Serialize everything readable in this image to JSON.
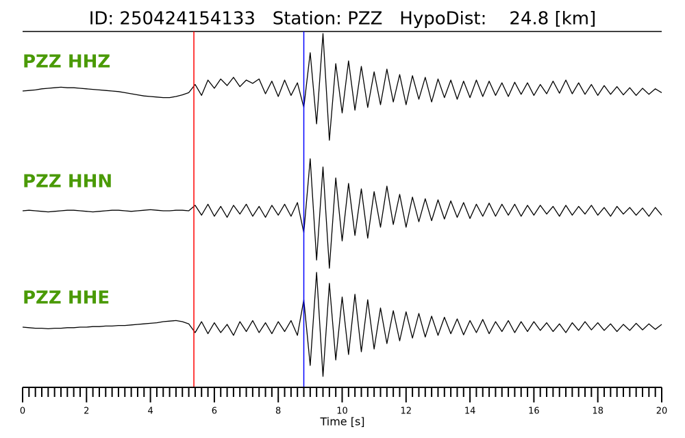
{
  "chart_data": {
    "type": "line",
    "title": "ID: 250424154133   Station: PZZ   HypoDist:    24.8 [km]",
    "xlabel": "Time [s]",
    "xlim": [
      0,
      20
    ],
    "xticks": [
      0,
      2,
      4,
      6,
      8,
      10,
      12,
      14,
      16,
      18,
      20
    ],
    "xminorticks": [
      0.2,
      0.4,
      0.6,
      0.8,
      1,
      1.2,
      1.4,
      1.6,
      1.8,
      2.2,
      2.4,
      2.6,
      2.8,
      3,
      3.2,
      3.4,
      3.6,
      3.8,
      4.2,
      4.4,
      4.6,
      4.8,
      5,
      5.2,
      5.4,
      5.6,
      5.8,
      6.2,
      6.4,
      6.6,
      6.8,
      7,
      7.2,
      7.4,
      7.6,
      7.8,
      8.2,
      8.4,
      8.6,
      8.8,
      9,
      9.2,
      9.4,
      9.6,
      9.8,
      10.2,
      10.4,
      10.6,
      10.8,
      11,
      11.2,
      11.4,
      11.6,
      11.8,
      12.2,
      12.4,
      12.6,
      12.8,
      13,
      13.2,
      13.4,
      13.6,
      13.8,
      14.2,
      14.4,
      14.6,
      14.8,
      15,
      15.2,
      15.4,
      15.6,
      15.8,
      16.2,
      16.4,
      16.6,
      16.8,
      17,
      17.2,
      17.4,
      17.6,
      17.8,
      18.2,
      18.4,
      18.6,
      18.8,
      19,
      19.2,
      19.4,
      19.6,
      19.8
    ],
    "ylim": [
      -1.1,
      1.1
    ],
    "label_color": "#4a9a06",
    "vlines": [
      {
        "x": 5.36,
        "color": "#ff0000"
      },
      {
        "x": 8.8,
        "color": "#0000ff"
      }
    ],
    "x": [
      0,
      0.2,
      0.4,
      0.6,
      0.8,
      1,
      1.2,
      1.4,
      1.6,
      1.8,
      2,
      2.2,
      2.4,
      2.6,
      2.8,
      3,
      3.2,
      3.4,
      3.6,
      3.8,
      4,
      4.2,
      4.4,
      4.6,
      4.8,
      5,
      5.2,
      5.4,
      5.6,
      5.8,
      6,
      6.2,
      6.4,
      6.6,
      6.8,
      7,
      7.2,
      7.4,
      7.6,
      7.8,
      8,
      8.2,
      8.4,
      8.6,
      8.8,
      9,
      9.2,
      9.4,
      9.6,
      9.8,
      10,
      10.2,
      10.4,
      10.6,
      10.8,
      11,
      11.2,
      11.4,
      11.6,
      11.8,
      12,
      12.2,
      12.4,
      12.6,
      12.8,
      13,
      13.2,
      13.4,
      13.6,
      13.8,
      14,
      14.2,
      14.4,
      14.6,
      14.8,
      15,
      15.2,
      15.4,
      15.6,
      15.8,
      16,
      16.2,
      16.4,
      16.6,
      16.8,
      17,
      17.2,
      17.4,
      17.6,
      17.8,
      18,
      18.2,
      18.4,
      18.6,
      18.8,
      19,
      19.2,
      19.4,
      19.6,
      19.8,
      20
    ],
    "series": [
      {
        "name": "PZZ HHZ",
        "color": "#000000",
        "values": [
          0,
          0.01,
          0.02,
          0.04,
          0.05,
          0.06,
          0.07,
          0.06,
          0.06,
          0.05,
          0.04,
          0.03,
          0.02,
          0.01,
          0,
          -0.01,
          -0.03,
          -0.05,
          -0.07,
          -0.09,
          -0.1,
          -0.11,
          -0.12,
          -0.12,
          -0.1,
          -0.07,
          -0.03,
          0.12,
          -0.08,
          0.2,
          0.05,
          0.22,
          0.1,
          0.25,
          0.08,
          0.2,
          0.14,
          0.22,
          -0.05,
          0.18,
          -0.1,
          0.2,
          -0.08,
          0.15,
          -0.3,
          0.7,
          -0.6,
          1.05,
          -0.9,
          0.5,
          -0.4,
          0.55,
          -0.35,
          0.45,
          -0.3,
          0.35,
          -0.25,
          0.4,
          -0.2,
          0.3,
          -0.25,
          0.28,
          -0.15,
          0.25,
          -0.2,
          0.22,
          -0.12,
          0.2,
          -0.15,
          0.18,
          -0.12,
          0.2,
          -0.1,
          0.18,
          -0.08,
          0.15,
          -0.1,
          0.16,
          -0.06,
          0.15,
          -0.08,
          0.12,
          -0.05,
          0.18,
          -0.04,
          0.2,
          -0.05,
          0.15,
          -0.06,
          0.12,
          -0.08,
          0.1,
          -0.06,
          0.08,
          -0.07,
          0.06,
          -0.08,
          0.05,
          -0.06,
          0.04,
          -0.03
        ]
      },
      {
        "name": "PZZ HHN",
        "color": "#000000",
        "values": [
          0,
          0.01,
          0,
          -0.01,
          -0.02,
          -0.01,
          0,
          0.01,
          0.01,
          0,
          -0.01,
          -0.02,
          -0.01,
          0,
          0.01,
          0.01,
          0,
          -0.01,
          0,
          0.01,
          0.02,
          0.01,
          0,
          0,
          0.01,
          0.01,
          0,
          0.1,
          -0.08,
          0.12,
          -0.1,
          0.08,
          -0.12,
          0.1,
          -0.06,
          0.12,
          -0.1,
          0.08,
          -0.12,
          0.1,
          -0.08,
          0.12,
          -0.1,
          0.15,
          -0.4,
          0.95,
          -0.9,
          0.8,
          -1.05,
          0.6,
          -0.55,
          0.5,
          -0.45,
          0.4,
          -0.5,
          0.35,
          -0.3,
          0.45,
          -0.25,
          0.3,
          -0.3,
          0.25,
          -0.2,
          0.22,
          -0.18,
          0.2,
          -0.15,
          0.18,
          -0.12,
          0.15,
          -0.14,
          0.12,
          -0.1,
          0.14,
          -0.1,
          0.12,
          -0.08,
          0.12,
          -0.1,
          0.1,
          -0.08,
          0.1,
          -0.06,
          0.08,
          -0.1,
          0.1,
          -0.08,
          0.08,
          -0.06,
          0.1,
          -0.08,
          0.06,
          -0.1,
          0.08,
          -0.06,
          0.06,
          -0.08,
          0.05,
          -0.1,
          0.06,
          -0.08
        ]
      },
      {
        "name": "PZZ HHE",
        "color": "#000000",
        "values": [
          0,
          -0.01,
          -0.02,
          -0.02,
          -0.03,
          -0.02,
          -0.02,
          -0.01,
          -0.01,
          0,
          0,
          0.01,
          0.01,
          0.02,
          0.02,
          0.03,
          0.03,
          0.04,
          0.05,
          0.06,
          0.07,
          0.08,
          0.1,
          0.11,
          0.12,
          0.1,
          0.06,
          -0.1,
          0.1,
          -0.12,
          0.08,
          -0.1,
          0.05,
          -0.15,
          0.1,
          -0.08,
          0.12,
          -0.1,
          0.08,
          -0.12,
          0.1,
          -0.08,
          0.12,
          -0.15,
          0.5,
          -0.7,
          1.0,
          -0.9,
          0.8,
          -0.6,
          0.55,
          -0.5,
          0.6,
          -0.45,
          0.5,
          -0.4,
          0.35,
          -0.3,
          0.3,
          -0.25,
          0.28,
          -0.2,
          0.25,
          -0.18,
          0.2,
          -0.15,
          0.18,
          -0.12,
          0.15,
          -0.14,
          0.12,
          -0.1,
          0.14,
          -0.12,
          0.1,
          -0.08,
          0.12,
          -0.1,
          0.1,
          -0.08,
          0.1,
          -0.06,
          0.08,
          -0.08,
          0.06,
          -0.1,
          0.08,
          -0.06,
          0.1,
          -0.05,
          0.08,
          -0.06,
          0.06,
          -0.08,
          0.05,
          -0.06,
          0.07,
          -0.05,
          0.06,
          -0.04,
          0.05
        ]
      }
    ]
  }
}
